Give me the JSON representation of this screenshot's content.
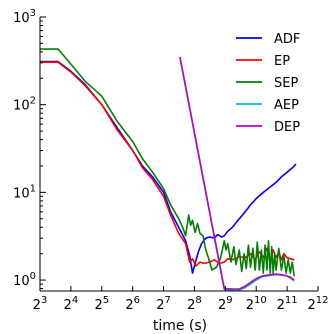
{
  "chart_data": {
    "type": "line",
    "xlabel": "time (s)",
    "ylabel": "",
    "title": "",
    "xscale": "log2",
    "yscale": "log10",
    "xlim": [
      8,
      4096
    ],
    "ylim": [
      0.75,
      1000
    ],
    "grid": false,
    "legend_position": "top-right",
    "x_ticks": [
      {
        "base": "2",
        "exp": "3",
        "value": 8
      },
      {
        "base": "2",
        "exp": "4",
        "value": 16
      },
      {
        "base": "2",
        "exp": "5",
        "value": 32
      },
      {
        "base": "2",
        "exp": "6",
        "value": 64
      },
      {
        "base": "2",
        "exp": "7",
        "value": 128
      },
      {
        "base": "2",
        "exp": "8",
        "value": 256
      },
      {
        "base": "2",
        "exp": "9",
        "value": 512
      },
      {
        "base": "2",
        "exp": "10",
        "value": 1024
      },
      {
        "base": "2",
        "exp": "11",
        "value": 2048
      },
      {
        "base": "2",
        "exp": "12",
        "value": 4096
      }
    ],
    "y_ticks": [
      {
        "base": "10",
        "exp": "0",
        "value": 1
      },
      {
        "base": "10",
        "exp": "1",
        "value": 10
      },
      {
        "base": "10",
        "exp": "2",
        "value": 100
      },
      {
        "base": "10",
        "exp": "3",
        "value": 1000
      }
    ],
    "series": [
      {
        "name": "ADF",
        "color": "#0000ff",
        "points": [
          [
            8,
            310
          ],
          [
            12,
            310
          ],
          [
            16,
            240
          ],
          [
            22,
            170
          ],
          [
            32,
            100
          ],
          [
            45,
            55
          ],
          [
            64,
            30
          ],
          [
            80,
            20
          ],
          [
            100,
            15
          ],
          [
            128,
            10
          ],
          [
            150,
            6
          ],
          [
            180,
            4
          ],
          [
            210,
            2.8
          ],
          [
            230,
            1.9
          ],
          [
            245,
            1.2
          ],
          [
            260,
            1.55
          ],
          [
            280,
            2.1
          ],
          [
            300,
            2.6
          ],
          [
            330,
            3.0
          ],
          [
            360,
            3.1
          ],
          [
            400,
            3.0
          ],
          [
            430,
            3.3
          ],
          [
            470,
            3.1
          ],
          [
            500,
            3.2
          ],
          [
            540,
            3.6
          ],
          [
            600,
            4.0
          ],
          [
            700,
            5.0
          ],
          [
            800,
            6.0
          ],
          [
            900,
            7.2
          ],
          [
            1024,
            8.5
          ],
          [
            1200,
            10
          ],
          [
            1400,
            11.5
          ],
          [
            1600,
            13
          ],
          [
            1800,
            15
          ],
          [
            2048,
            17
          ],
          [
            2300,
            19
          ],
          [
            2500,
            21
          ]
        ]
      },
      {
        "name": "EP",
        "color": "#ff0000",
        "points": [
          [
            8,
            305
          ],
          [
            12,
            305
          ],
          [
            16,
            235
          ],
          [
            22,
            165
          ],
          [
            32,
            100
          ],
          [
            45,
            52
          ],
          [
            64,
            30
          ],
          [
            80,
            19
          ],
          [
            100,
            14
          ],
          [
            128,
            9
          ],
          [
            150,
            5.5
          ],
          [
            180,
            3.4
          ],
          [
            210,
            2.6
          ],
          [
            230,
            1.6
          ],
          [
            245,
            1.75
          ],
          [
            265,
            1.45
          ],
          [
            290,
            1.6
          ],
          [
            320,
            1.55
          ],
          [
            360,
            1.6
          ],
          [
            400,
            1.7
          ],
          [
            450,
            1.55
          ],
          [
            500,
            1.6
          ],
          [
            540,
            1.75
          ],
          [
            600,
            1.7
          ],
          [
            700,
            1.85
          ],
          [
            800,
            1.8
          ],
          [
            900,
            2.0
          ],
          [
            1000,
            1.7
          ],
          [
            1100,
            2.1
          ],
          [
            1200,
            1.8
          ],
          [
            1300,
            2.3
          ],
          [
            1400,
            1.7
          ],
          [
            1500,
            2.2
          ],
          [
            1600,
            1.8
          ],
          [
            1700,
            2.1
          ],
          [
            1800,
            1.7
          ],
          [
            1900,
            2.0
          ],
          [
            2048,
            1.8
          ],
          [
            2200,
            1.75
          ],
          [
            2400,
            1.7
          ]
        ]
      },
      {
        "name": "SEP",
        "color": "#008000",
        "points": [
          [
            8,
            430
          ],
          [
            12,
            430
          ],
          [
            16,
            290
          ],
          [
            22,
            185
          ],
          [
            32,
            125
          ],
          [
            45,
            65
          ],
          [
            64,
            38
          ],
          [
            80,
            24
          ],
          [
            100,
            17
          ],
          [
            128,
            11
          ],
          [
            150,
            7.2
          ],
          [
            180,
            5.0
          ],
          [
            200,
            3.8
          ],
          [
            210,
            3.2
          ],
          [
            225,
            5.5
          ],
          [
            235,
            4.2
          ],
          [
            245,
            4.8
          ],
          [
            260,
            3.5
          ],
          [
            275,
            4.4
          ],
          [
            290,
            3.4
          ],
          [
            310,
            3.2
          ],
          [
            330,
            2.2
          ],
          [
            350,
            1.8
          ],
          [
            380,
            1.3
          ],
          [
            420,
            1.4
          ],
          [
            460,
            1.8
          ],
          [
            500,
            2.8
          ],
          [
            520,
            2.2
          ],
          [
            540,
            2.6
          ],
          [
            580,
            1.6
          ],
          [
            620,
            2.4
          ],
          [
            650,
            1.5
          ],
          [
            700,
            2.2
          ],
          [
            740,
            1.25
          ],
          [
            780,
            2.0
          ],
          [
            820,
            1.35
          ],
          [
            860,
            2.5
          ],
          [
            900,
            1.4
          ],
          [
            950,
            2.3
          ],
          [
            1000,
            1.3
          ],
          [
            1050,
            2.7
          ],
          [
            1100,
            1.3
          ],
          [
            1150,
            2.2
          ],
          [
            1200,
            1.2
          ],
          [
            1250,
            2.5
          ],
          [
            1300,
            1.3
          ],
          [
            1350,
            2.8
          ],
          [
            1400,
            1.2
          ],
          [
            1450,
            2.4
          ],
          [
            1500,
            1.2
          ],
          [
            1550,
            2.0
          ],
          [
            1600,
            1.3
          ],
          [
            1700,
            2.3
          ],
          [
            1800,
            1.3
          ],
          [
            1900,
            1.9
          ],
          [
            2000,
            1.2
          ],
          [
            2100,
            1.7
          ],
          [
            2200,
            1.2
          ],
          [
            2300,
            1.6
          ],
          [
            2400,
            1.1
          ]
        ]
      },
      {
        "name": "AEP",
        "color": "#00bfbf",
        "points": [
          [
            185,
            340
          ],
          [
            500,
            0.78
          ],
          [
            600,
            0.77
          ],
          [
            700,
            0.77
          ],
          [
            800,
            0.82
          ],
          [
            900,
            0.9
          ],
          [
            1000,
            0.98
          ],
          [
            1100,
            1.05
          ],
          [
            1200,
            1.1
          ],
          [
            1400,
            1.13
          ],
          [
            1600,
            1.15
          ],
          [
            1800,
            1.14
          ],
          [
            2000,
            1.12
          ],
          [
            2200,
            1.05
          ],
          [
            2400,
            0.98
          ]
        ]
      },
      {
        "name": "DEP",
        "color": "#bf00bf",
        "points": [
          [
            185,
            350
          ],
          [
            500,
            0.8
          ],
          [
            600,
            0.79
          ],
          [
            700,
            0.79
          ],
          [
            800,
            0.85
          ],
          [
            900,
            0.94
          ],
          [
            1000,
            1.02
          ],
          [
            1100,
            1.08
          ],
          [
            1200,
            1.12
          ],
          [
            1400,
            1.15
          ],
          [
            1600,
            1.17
          ],
          [
            1800,
            1.15
          ],
          [
            2000,
            1.12
          ],
          [
            2200,
            1.08
          ],
          [
            2400,
            1.0
          ]
        ]
      }
    ]
  }
}
